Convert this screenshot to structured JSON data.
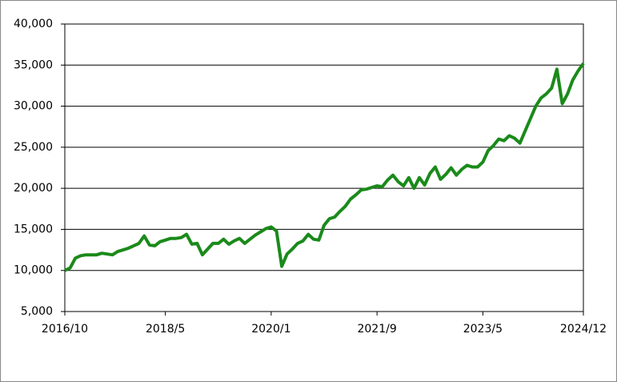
{
  "chart_data": {
    "type": "line",
    "x": [
      "2016/10",
      "2016/11",
      "2016/12",
      "2017/1",
      "2017/2",
      "2017/3",
      "2017/4",
      "2017/5",
      "2017/6",
      "2017/7",
      "2017/8",
      "2017/9",
      "2017/10",
      "2017/11",
      "2017/12",
      "2018/1",
      "2018/2",
      "2018/3",
      "2018/4",
      "2018/5",
      "2018/6",
      "2018/7",
      "2018/8",
      "2018/9",
      "2018/10",
      "2018/11",
      "2018/12",
      "2019/1",
      "2019/2",
      "2019/3",
      "2019/4",
      "2019/5",
      "2019/6",
      "2019/7",
      "2019/8",
      "2019/9",
      "2019/10",
      "2019/11",
      "2019/12",
      "2020/1",
      "2020/2",
      "2020/3",
      "2020/4",
      "2020/5",
      "2020/6",
      "2020/7",
      "2020/8",
      "2020/9",
      "2020/10",
      "2020/11",
      "2020/12",
      "2021/1",
      "2021/2",
      "2021/3",
      "2021/4",
      "2021/5",
      "2021/6",
      "2021/7",
      "2021/8",
      "2021/9",
      "2021/10",
      "2021/11",
      "2021/12",
      "2022/1",
      "2022/2",
      "2022/3",
      "2022/4",
      "2022/5",
      "2022/6",
      "2022/7",
      "2022/8",
      "2022/9",
      "2022/10",
      "2022/11",
      "2022/12",
      "2023/1",
      "2023/2",
      "2023/3",
      "2023/4",
      "2023/5",
      "2023/6",
      "2023/7",
      "2023/8",
      "2023/9",
      "2023/10",
      "2023/11",
      "2023/12",
      "2024/1",
      "2024/2",
      "2024/3",
      "2024/4",
      "2024/5",
      "2024/6",
      "2024/7",
      "2024/8",
      "2024/9",
      "2024/10",
      "2024/11",
      "2024/12"
    ],
    "series": [
      {
        "color": "#1a8a1a",
        "values": [
          10000,
          10300,
          11500,
          11800,
          11900,
          11900,
          11900,
          12100,
          12000,
          11900,
          12300,
          12500,
          12700,
          13000,
          13300,
          14200,
          13100,
          13000,
          13500,
          13700,
          13900,
          13900,
          14000,
          14400,
          13200,
          13300,
          11900,
          12600,
          13300,
          13300,
          13800,
          13200,
          13600,
          13900,
          13300,
          13800,
          14300,
          14700,
          15100,
          15300,
          14800,
          10500,
          12000,
          12600,
          13300,
          13600,
          14400,
          13800,
          13700,
          15500,
          16300,
          16500,
          17200,
          17800,
          18700,
          19200,
          19800,
          19900,
          20100,
          20300,
          20200,
          21000,
          21600,
          20800,
          20300,
          21300,
          20000,
          21300,
          20400,
          21800,
          22600,
          21100,
          21700,
          22500,
          21600,
          22300,
          22800,
          22600,
          22600,
          23200,
          24600,
          25200,
          26000,
          25800,
          26400,
          26100,
          25500,
          27000,
          28500,
          30000,
          31000,
          31500,
          32200,
          34500,
          30300,
          31500,
          33200,
          34300,
          35200
        ]
      }
    ],
    "xticks": [
      "2016/10",
      "2018/5",
      "2020/1",
      "2021/9",
      "2023/5",
      "2024/12"
    ],
    "ylim": [
      5000,
      40000
    ],
    "yticks": [
      {
        "value": 5000,
        "label": "5,000"
      },
      {
        "value": 10000,
        "label": "10,000"
      },
      {
        "value": 15000,
        "label": "15,000"
      },
      {
        "value": 20000,
        "label": "20,000"
      },
      {
        "value": 25000,
        "label": "25,000"
      },
      {
        "value": 30000,
        "label": "30,000"
      },
      {
        "value": 35000,
        "label": "35,000"
      },
      {
        "value": 40000,
        "label": "40,000"
      }
    ],
    "grid": true
  }
}
